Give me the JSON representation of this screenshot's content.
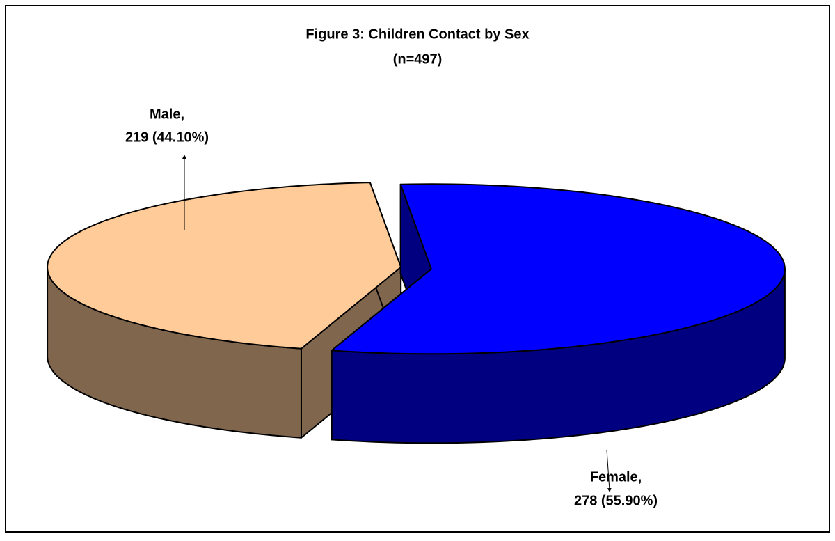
{
  "chart_data": {
    "type": "pie3d",
    "title": "Figure 3: Children Contact by Sex",
    "subtitle": "(n=497)",
    "categories": [
      "Male,",
      "Female,"
    ],
    "values": [
      219,
      278
    ],
    "value_labels": [
      "219 (44.10%)",
      "278 (55.90%)"
    ],
    "colors": [
      "#ffcc99",
      "#0000ff"
    ]
  }
}
